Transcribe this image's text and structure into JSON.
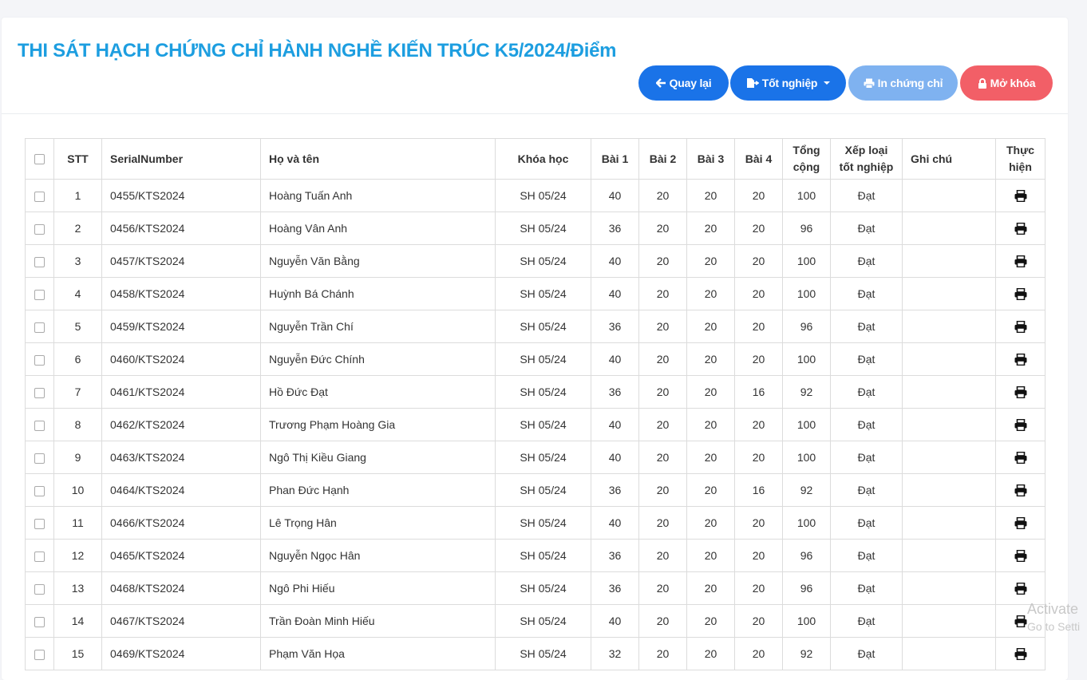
{
  "header": {
    "title": "THI SÁT HẠCH CHỨNG CHỈ HÀNH NGHỀ KIẾN TRÚC K5/2024/Điểm",
    "buttons": {
      "back": "Quay lại",
      "graduation": "Tốt nghiệp",
      "print_certificate": "In chứng chỉ",
      "unlock": "Mở khóa"
    }
  },
  "colors": {
    "title": "#1d9ee0",
    "primary": "#1a73e8",
    "primary_disabled": "#7fb2f0",
    "danger": "#f25f67"
  },
  "table": {
    "columns": {
      "stt": "STT",
      "serial": "SerialNumber",
      "name": "Họ và tên",
      "course": "Khóa học",
      "b1": "Bài 1",
      "b2": "Bài 2",
      "b3": "Bài 3",
      "b4": "Bài 4",
      "total_1": "Tổng",
      "total_2": "cộng",
      "grade_1": "Xếp loại",
      "grade_2": "tốt nghiệp",
      "note": "Ghi chú",
      "action_1": "Thực",
      "action_2": "hiện"
    },
    "rows": [
      {
        "stt": "1",
        "serial": "0455/KTS2024",
        "name": "Hoàng Tuấn Anh",
        "course": "SH 05/24",
        "b1": "40",
        "b2": "20",
        "b3": "20",
        "b4": "20",
        "total": "100",
        "grade": "Đạt",
        "note": ""
      },
      {
        "stt": "2",
        "serial": "0456/KTS2024",
        "name": "Hoàng Vân Anh",
        "course": "SH 05/24",
        "b1": "36",
        "b2": "20",
        "b3": "20",
        "b4": "20",
        "total": "96",
        "grade": "Đạt",
        "note": ""
      },
      {
        "stt": "3",
        "serial": "0457/KTS2024",
        "name": "Nguyễn Văn Bằng",
        "course": "SH 05/24",
        "b1": "40",
        "b2": "20",
        "b3": "20",
        "b4": "20",
        "total": "100",
        "grade": "Đạt",
        "note": ""
      },
      {
        "stt": "4",
        "serial": "0458/KTS2024",
        "name": "Huỳnh Bá Chánh",
        "course": "SH 05/24",
        "b1": "40",
        "b2": "20",
        "b3": "20",
        "b4": "20",
        "total": "100",
        "grade": "Đạt",
        "note": ""
      },
      {
        "stt": "5",
        "serial": "0459/KTS2024",
        "name": "Nguyễn Trần Chí",
        "course": "SH 05/24",
        "b1": "36",
        "b2": "20",
        "b3": "20",
        "b4": "20",
        "total": "96",
        "grade": "Đạt",
        "note": ""
      },
      {
        "stt": "6",
        "serial": "0460/KTS2024",
        "name": "Nguyễn Đức Chính",
        "course": "SH 05/24",
        "b1": "40",
        "b2": "20",
        "b3": "20",
        "b4": "20",
        "total": "100",
        "grade": "Đạt",
        "note": ""
      },
      {
        "stt": "7",
        "serial": "0461/KTS2024",
        "name": "Hồ Đức Đạt",
        "course": "SH 05/24",
        "b1": "36",
        "b2": "20",
        "b3": "20",
        "b4": "16",
        "total": "92",
        "grade": "Đạt",
        "note": ""
      },
      {
        "stt": "8",
        "serial": "0462/KTS2024",
        "name": "Trương Phạm Hoàng Gia",
        "course": "SH 05/24",
        "b1": "40",
        "b2": "20",
        "b3": "20",
        "b4": "20",
        "total": "100",
        "grade": "Đạt",
        "note": ""
      },
      {
        "stt": "9",
        "serial": "0463/KTS2024",
        "name": "Ngô Thị Kiều Giang",
        "course": "SH 05/24",
        "b1": "40",
        "b2": "20",
        "b3": "20",
        "b4": "20",
        "total": "100",
        "grade": "Đạt",
        "note": ""
      },
      {
        "stt": "10",
        "serial": "0464/KTS2024",
        "name": "Phan Đức Hạnh",
        "course": "SH 05/24",
        "b1": "36",
        "b2": "20",
        "b3": "20",
        "b4": "16",
        "total": "92",
        "grade": "Đạt",
        "note": ""
      },
      {
        "stt": "11",
        "serial": "0466/KTS2024",
        "name": "Lê Trọng Hân",
        "course": "SH 05/24",
        "b1": "40",
        "b2": "20",
        "b3": "20",
        "b4": "20",
        "total": "100",
        "grade": "Đạt",
        "note": ""
      },
      {
        "stt": "12",
        "serial": "0465/KTS2024",
        "name": "Nguyễn Ngọc Hân",
        "course": "SH 05/24",
        "b1": "36",
        "b2": "20",
        "b3": "20",
        "b4": "20",
        "total": "96",
        "grade": "Đạt",
        "note": ""
      },
      {
        "stt": "13",
        "serial": "0468/KTS2024",
        "name": "Ngô Phi Hiếu",
        "course": "SH 05/24",
        "b1": "36",
        "b2": "20",
        "b3": "20",
        "b4": "20",
        "total": "96",
        "grade": "Đạt",
        "note": ""
      },
      {
        "stt": "14",
        "serial": "0467/KTS2024",
        "name": "Trần Đoàn Minh Hiếu",
        "course": "SH 05/24",
        "b1": "40",
        "b2": "20",
        "b3": "20",
        "b4": "20",
        "total": "100",
        "grade": "Đạt",
        "note": ""
      },
      {
        "stt": "15",
        "serial": "0469/KTS2024",
        "name": "Phạm Văn Họa",
        "course": "SH 05/24",
        "b1": "32",
        "b2": "20",
        "b3": "20",
        "b4": "20",
        "total": "92",
        "grade": "Đạt",
        "note": ""
      }
    ]
  },
  "watermark": {
    "line1": "Activate",
    "line2": "Go to Setti"
  }
}
